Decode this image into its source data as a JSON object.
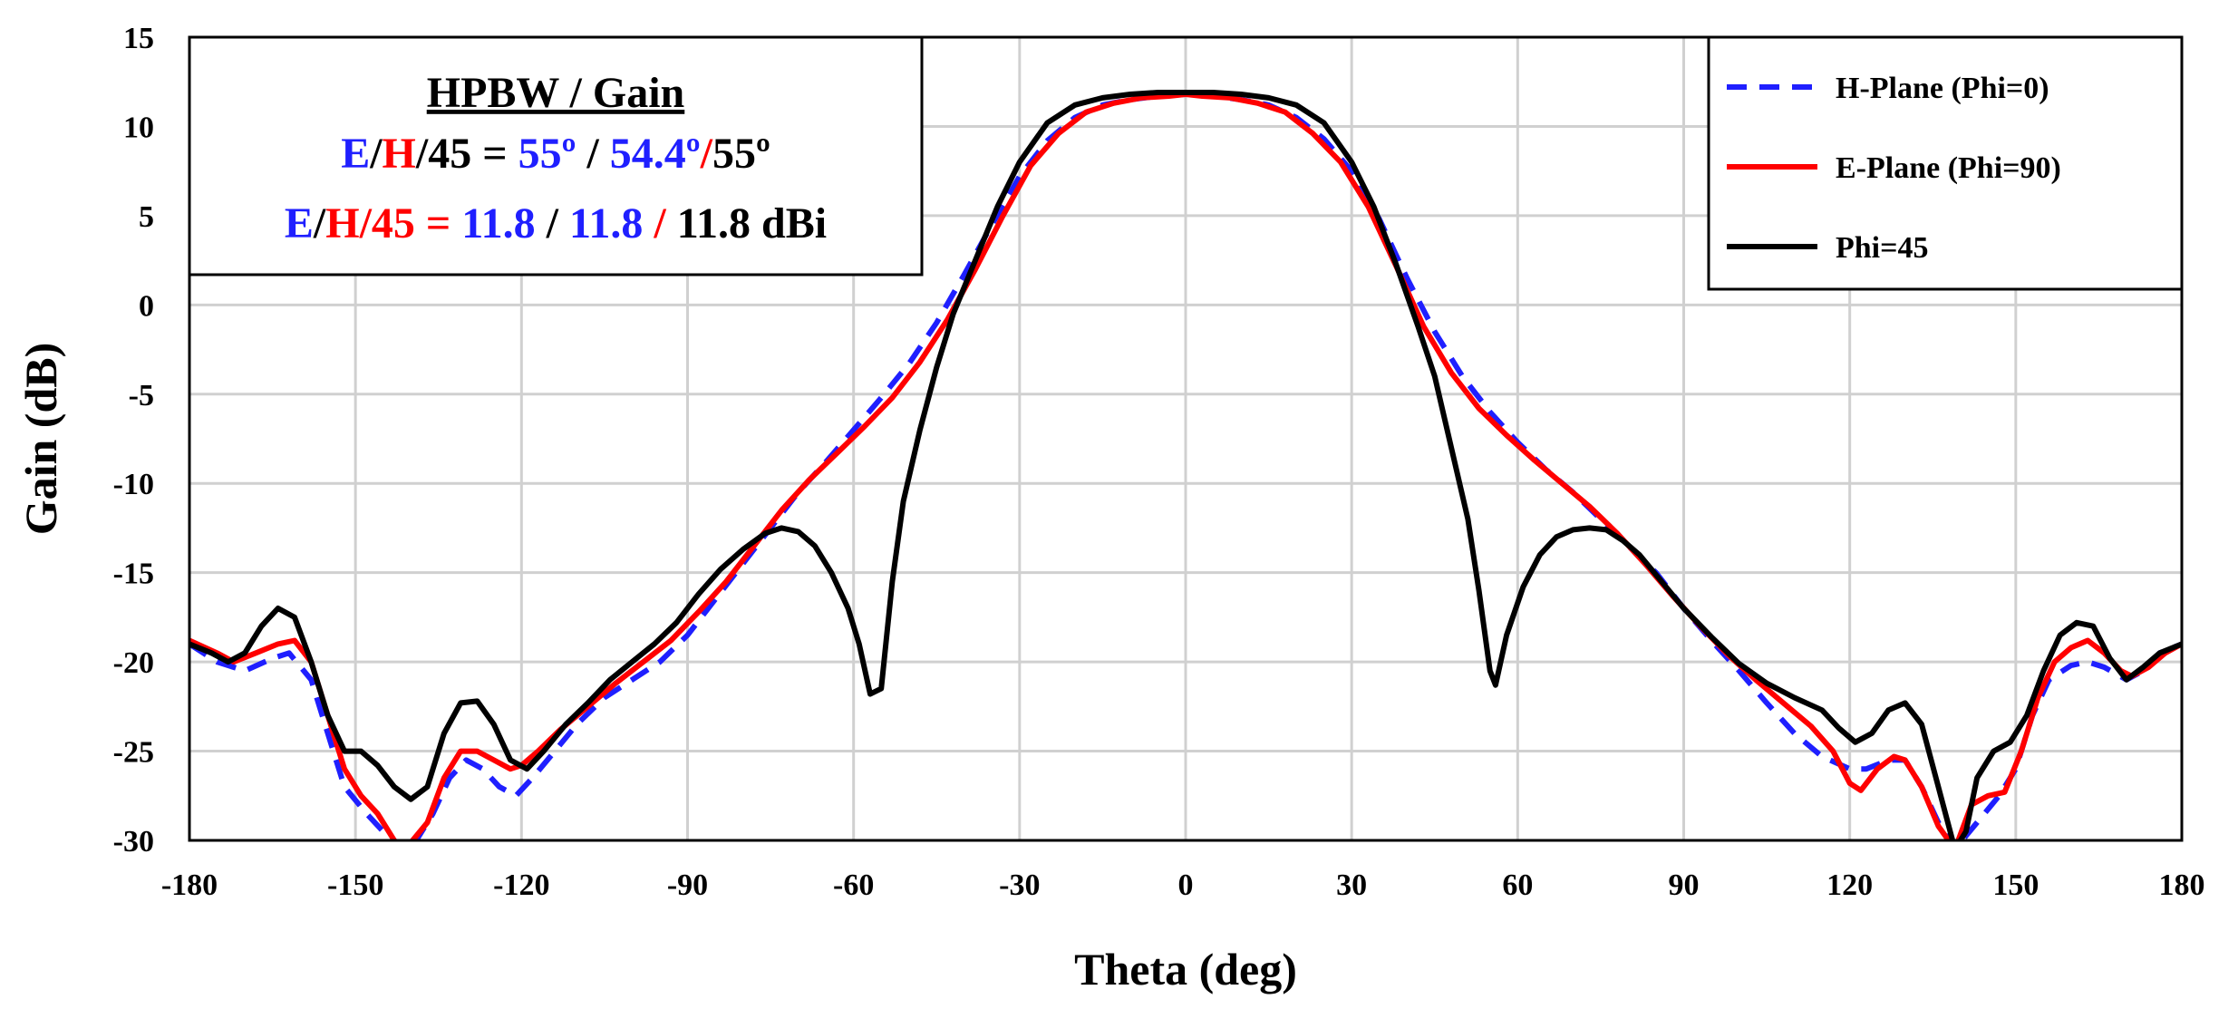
{
  "chart_data": {
    "type": "line",
    "xlabel": "Theta (deg)",
    "ylabel": "Gain (dB)",
    "xlim": [
      -180,
      180
    ],
    "ylim": [
      -30,
      15
    ],
    "xticks": [
      -180,
      -150,
      -120,
      -90,
      -60,
      -30,
      0,
      30,
      60,
      90,
      120,
      150,
      180
    ],
    "yticks": [
      -30,
      -25,
      -20,
      -15,
      -10,
      -5,
      0,
      5,
      10,
      15
    ],
    "grid": true,
    "legend_position": "top-right",
    "colors": {
      "blue": "#1f1fff",
      "red": "#ff0000",
      "black": "#000000"
    },
    "annotation": {
      "title": "HPBW / Gain",
      "line1": [
        {
          "text": "E",
          "color": "#1f1fff"
        },
        {
          "text": "/",
          "color": "#000000"
        },
        {
          "text": "H",
          "color": "#ff0000"
        },
        {
          "text": "/45 = ",
          "color": "#000000"
        },
        {
          "text": "55º",
          "color": "#1f1fff"
        },
        {
          "text": " / ",
          "color": "#000000"
        },
        {
          "text": "54.4º",
          "color": "#1f1fff"
        },
        {
          "text": "/",
          "color": "#ff0000"
        },
        {
          "text": "55º",
          "color": "#000000"
        }
      ],
      "line2": [
        {
          "text": "E",
          "color": "#1f1fff"
        },
        {
          "text": "/",
          "color": "#000000"
        },
        {
          "text": "H/45 = ",
          "color": "#ff0000"
        },
        {
          "text": "11.8",
          "color": "#1f1fff"
        },
        {
          "text": " / ",
          "color": "#000000"
        },
        {
          "text": "11.8",
          "color": "#1f1fff"
        },
        {
          "text": " / ",
          "color": "#ff0000"
        },
        {
          "text": "11.8 dBi",
          "color": "#000000"
        }
      ]
    },
    "series": [
      {
        "name": "H-Plane (Phi=0)",
        "color": "#1f1fff",
        "dash": true,
        "points": [
          [
            -180,
            -19
          ],
          [
            -175,
            -20
          ],
          [
            -170,
            -20.5
          ],
          [
            -165,
            -19.8
          ],
          [
            -162,
            -19.5
          ],
          [
            -158,
            -21
          ],
          [
            -155,
            -24
          ],
          [
            -152,
            -27
          ],
          [
            -148,
            -28.5
          ],
          [
            -145,
            -29.5
          ],
          [
            -143,
            -30.5
          ],
          [
            -140,
            -30.5
          ],
          [
            -136,
            -28.5
          ],
          [
            -133,
            -26.5
          ],
          [
            -130,
            -25.5
          ],
          [
            -127,
            -26
          ],
          [
            -124,
            -27
          ],
          [
            -121,
            -27.5
          ],
          [
            -118,
            -26.5
          ],
          [
            -114,
            -25
          ],
          [
            -110,
            -23.5
          ],
          [
            -105,
            -22
          ],
          [
            -100,
            -21
          ],
          [
            -95,
            -20
          ],
          [
            -90,
            -18.5
          ],
          [
            -85,
            -16.5
          ],
          [
            -80,
            -14.5
          ],
          [
            -75,
            -12.5
          ],
          [
            -70,
            -10.5
          ],
          [
            -65,
            -8.8
          ],
          [
            -60,
            -7
          ],
          [
            -55,
            -5.2
          ],
          [
            -50,
            -3.3
          ],
          [
            -45,
            -1
          ],
          [
            -40,
            1.7
          ],
          [
            -35,
            4.5
          ],
          [
            -30,
            7.2
          ],
          [
            -25,
            9.2
          ],
          [
            -20,
            10.5
          ],
          [
            -15,
            11.2
          ],
          [
            -10,
            11.5
          ],
          [
            -5,
            11.7
          ],
          [
            0,
            11.8
          ],
          [
            5,
            11.7
          ],
          [
            10,
            11.5
          ],
          [
            15,
            11.2
          ],
          [
            20,
            10.5
          ],
          [
            25,
            9.3
          ],
          [
            30,
            7.5
          ],
          [
            35,
            4.8
          ],
          [
            40,
            1.5
          ],
          [
            45,
            -1.5
          ],
          [
            50,
            -4
          ],
          [
            55,
            -6
          ],
          [
            60,
            -7.7
          ],
          [
            65,
            -9.2
          ],
          [
            70,
            -10.5
          ],
          [
            75,
            -12
          ],
          [
            80,
            -13.5
          ],
          [
            85,
            -15
          ],
          [
            90,
            -17
          ],
          [
            95,
            -18.8
          ],
          [
            100,
            -20.5
          ],
          [
            105,
            -22.3
          ],
          [
            110,
            -24
          ],
          [
            115,
            -25.3
          ],
          [
            120,
            -26
          ],
          [
            123,
            -26
          ],
          [
            127,
            -25.5
          ],
          [
            130,
            -25.5
          ],
          [
            133,
            -27
          ],
          [
            136,
            -29
          ],
          [
            139,
            -30.5
          ],
          [
            143,
            -29
          ],
          [
            147,
            -27.5
          ],
          [
            150,
            -26
          ],
          [
            153,
            -23
          ],
          [
            156,
            -21
          ],
          [
            160,
            -20.2
          ],
          [
            163,
            -20
          ],
          [
            166,
            -20.3
          ],
          [
            170,
            -21
          ],
          [
            173,
            -20.5
          ],
          [
            176,
            -19.5
          ],
          [
            180,
            -19
          ]
        ]
      },
      {
        "name": "E-Plane (Phi=90)",
        "color": "#ff0000",
        "dash": false,
        "points": [
          [
            -180,
            -18.8
          ],
          [
            -175,
            -19.5
          ],
          [
            -172,
            -20
          ],
          [
            -168,
            -19.5
          ],
          [
            -164,
            -19
          ],
          [
            -161,
            -18.8
          ],
          [
            -158,
            -20
          ],
          [
            -155,
            -23
          ],
          [
            -152,
            -26
          ],
          [
            -149,
            -27.5
          ],
          [
            -146,
            -28.5
          ],
          [
            -143,
            -30
          ],
          [
            -141,
            -30.5
          ],
          [
            -137,
            -29
          ],
          [
            -134,
            -26.5
          ],
          [
            -131,
            -25
          ],
          [
            -128,
            -25
          ],
          [
            -125,
            -25.5
          ],
          [
            -122,
            -26
          ],
          [
            -120,
            -25.8
          ],
          [
            -117,
            -25
          ],
          [
            -113,
            -23.8
          ],
          [
            -108,
            -22.5
          ],
          [
            -103,
            -21.2
          ],
          [
            -98,
            -20
          ],
          [
            -93,
            -18.8
          ],
          [
            -88,
            -17.2
          ],
          [
            -83,
            -15.5
          ],
          [
            -78,
            -13.5
          ],
          [
            -73,
            -11.5
          ],
          [
            -68,
            -9.8
          ],
          [
            -63,
            -8.3
          ],
          [
            -58,
            -6.8
          ],
          [
            -53,
            -5.2
          ],
          [
            -48,
            -3.2
          ],
          [
            -43,
            -0.8
          ],
          [
            -38,
            2
          ],
          [
            -33,
            5
          ],
          [
            -28,
            7.8
          ],
          [
            -23,
            9.6
          ],
          [
            -18,
            10.8
          ],
          [
            -13,
            11.3
          ],
          [
            -8,
            11.6
          ],
          [
            -3,
            11.7
          ],
          [
            0,
            11.8
          ],
          [
            3,
            11.7
          ],
          [
            8,
            11.6
          ],
          [
            13,
            11.3
          ],
          [
            18,
            10.8
          ],
          [
            23,
            9.6
          ],
          [
            28,
            8
          ],
          [
            33,
            5.5
          ],
          [
            38,
            2.2
          ],
          [
            43,
            -1.2
          ],
          [
            48,
            -3.8
          ],
          [
            53,
            -5.8
          ],
          [
            58,
            -7.3
          ],
          [
            63,
            -8.7
          ],
          [
            68,
            -10
          ],
          [
            73,
            -11.3
          ],
          [
            78,
            -12.8
          ],
          [
            83,
            -14.5
          ],
          [
            88,
            -16.3
          ],
          [
            93,
            -18
          ],
          [
            98,
            -19.6
          ],
          [
            103,
            -21
          ],
          [
            108,
            -22.3
          ],
          [
            113,
            -23.6
          ],
          [
            117,
            -25
          ],
          [
            120,
            -26.8
          ],
          [
            122,
            -27.2
          ],
          [
            125,
            -26
          ],
          [
            128,
            -25.3
          ],
          [
            130,
            -25.5
          ],
          [
            133,
            -27
          ],
          [
            136,
            -29.2
          ],
          [
            139,
            -30.5
          ],
          [
            142,
            -28
          ],
          [
            145,
            -27.5
          ],
          [
            148,
            -27.3
          ],
          [
            151,
            -25
          ],
          [
            154,
            -22
          ],
          [
            157,
            -20
          ],
          [
            160,
            -19.2
          ],
          [
            163,
            -18.8
          ],
          [
            166,
            -19.5
          ],
          [
            169,
            -20.5
          ],
          [
            171,
            -20.8
          ],
          [
            174,
            -20.3
          ],
          [
            177,
            -19.5
          ],
          [
            180,
            -19
          ]
        ]
      },
      {
        "name": "Phi=45",
        "color": "#000000",
        "dash": false,
        "points": [
          [
            -180,
            -19
          ],
          [
            -176,
            -19.5
          ],
          [
            -173,
            -20
          ],
          [
            -170,
            -19.5
          ],
          [
            -167,
            -18
          ],
          [
            -164,
            -17
          ],
          [
            -161,
            -17.5
          ],
          [
            -158,
            -20
          ],
          [
            -155,
            -23
          ],
          [
            -152,
            -25
          ],
          [
            -149,
            -25
          ],
          [
            -146,
            -25.8
          ],
          [
            -143,
            -27
          ],
          [
            -140,
            -27.7
          ],
          [
            -137,
            -27
          ],
          [
            -134,
            -24
          ],
          [
            -131,
            -22.3
          ],
          [
            -128,
            -22.2
          ],
          [
            -125,
            -23.5
          ],
          [
            -122,
            -25.5
          ],
          [
            -119,
            -26
          ],
          [
            -116,
            -25
          ],
          [
            -112,
            -23.5
          ],
          [
            -108,
            -22.3
          ],
          [
            -104,
            -21
          ],
          [
            -100,
            -20
          ],
          [
            -96,
            -19
          ],
          [
            -92,
            -17.8
          ],
          [
            -88,
            -16.2
          ],
          [
            -84,
            -14.8
          ],
          [
            -80,
            -13.7
          ],
          [
            -76,
            -12.8
          ],
          [
            -73,
            -12.5
          ],
          [
            -70,
            -12.7
          ],
          [
            -67,
            -13.5
          ],
          [
            -64,
            -15
          ],
          [
            -61,
            -17
          ],
          [
            -59,
            -19
          ],
          [
            -57,
            -21.8
          ],
          [
            -55,
            -21.5
          ],
          [
            -53,
            -15.5
          ],
          [
            -51,
            -11
          ],
          [
            -48,
            -7
          ],
          [
            -45,
            -3.5
          ],
          [
            -42,
            -0.5
          ],
          [
            -38,
            2.5
          ],
          [
            -34,
            5.5
          ],
          [
            -30,
            8
          ],
          [
            -25,
            10.2
          ],
          [
            -20,
            11.2
          ],
          [
            -15,
            11.6
          ],
          [
            -10,
            11.8
          ],
          [
            -5,
            11.9
          ],
          [
            0,
            11.9
          ],
          [
            5,
            11.9
          ],
          [
            10,
            11.8
          ],
          [
            15,
            11.6
          ],
          [
            20,
            11.2
          ],
          [
            25,
            10.2
          ],
          [
            30,
            8
          ],
          [
            34,
            5.5
          ],
          [
            38,
            2.3
          ],
          [
            42,
            -1.2
          ],
          [
            45,
            -4
          ],
          [
            48,
            -8
          ],
          [
            51,
            -12
          ],
          [
            53,
            -16
          ],
          [
            55,
            -20.5
          ],
          [
            56,
            -21.3
          ],
          [
            58,
            -18.5
          ],
          [
            61,
            -15.8
          ],
          [
            64,
            -14
          ],
          [
            67,
            -13
          ],
          [
            70,
            -12.6
          ],
          [
            73,
            -12.5
          ],
          [
            76,
            -12.6
          ],
          [
            79,
            -13.2
          ],
          [
            82,
            -14
          ],
          [
            86,
            -15.5
          ],
          [
            90,
            -17
          ],
          [
            95,
            -18.6
          ],
          [
            100,
            -20.1
          ],
          [
            105,
            -21.2
          ],
          [
            110,
            -22
          ],
          [
            115,
            -22.7
          ],
          [
            118,
            -23.7
          ],
          [
            121,
            -24.5
          ],
          [
            124,
            -24
          ],
          [
            127,
            -22.7
          ],
          [
            130,
            -22.3
          ],
          [
            133,
            -23.5
          ],
          [
            136,
            -27
          ],
          [
            139,
            -30.5
          ],
          [
            141,
            -29.5
          ],
          [
            143,
            -26.5
          ],
          [
            146,
            -25
          ],
          [
            149,
            -24.5
          ],
          [
            152,
            -23
          ],
          [
            155,
            -20.5
          ],
          [
            158,
            -18.5
          ],
          [
            161,
            -17.8
          ],
          [
            164,
            -18
          ],
          [
            167,
            -19.8
          ],
          [
            170,
            -21
          ],
          [
            173,
            -20.3
          ],
          [
            176,
            -19.5
          ],
          [
            180,
            -19
          ]
        ]
      }
    ]
  }
}
